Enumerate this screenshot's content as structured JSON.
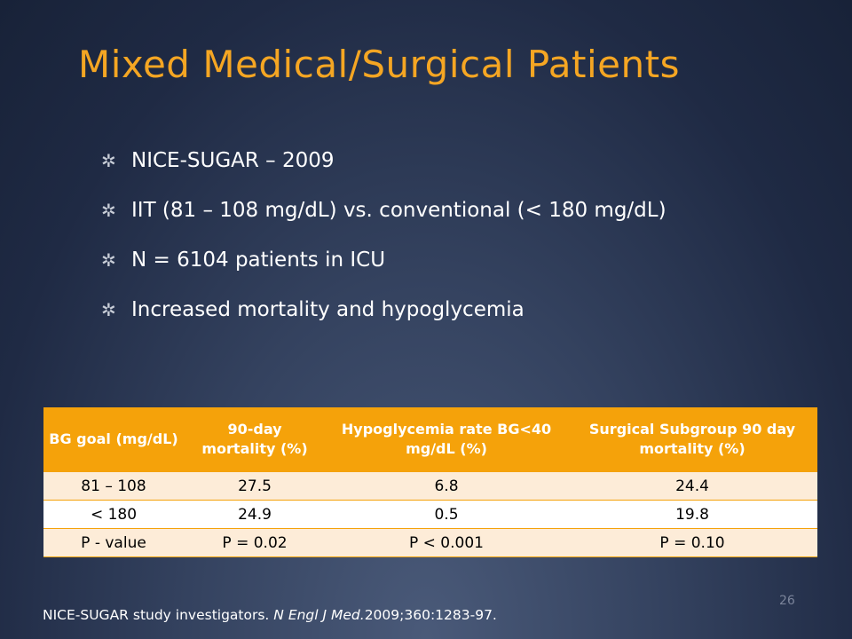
{
  "slide": {
    "title": "Mixed Medical/Surgical Patients",
    "bullets": [
      {
        "icon": "asterisk-bullet-icon",
        "text": "NICE-SUGAR – 2009"
      },
      {
        "icon": "asterisk-bullet-icon",
        "text": "IIT (81 – 108 mg/dL) vs. conventional (< 180 mg/dL)"
      },
      {
        "icon": "asterisk-bullet-icon",
        "text": "N = 6104 patients in ICU"
      },
      {
        "icon": "asterisk-bullet-icon",
        "text": "Increased mortality and  hypoglycemia"
      }
    ],
    "table": {
      "headers": [
        "BG goal (mg/dL)",
        "90-day mortality (%)",
        "Hypoglycemia rate BG<40 mg/dL (%)",
        "Surgical Subgroup 90 day mortality (%)"
      ],
      "rows": [
        [
          "81 – 108",
          "27.5",
          "6.8",
          "24.4"
        ],
        [
          "< 180",
          "24.9",
          "0.5",
          "19.8"
        ],
        [
          "P - value",
          "P = 0.02",
          "P < 0.001",
          "P = 0.10"
        ]
      ]
    },
    "citation_prefix": "NICE-SUGAR study investigators. ",
    "citation_journal": "N Engl J Med.",
    "citation_suffix": "2009;360:1283-97.",
    "slide_number": "26"
  },
  "colors": {
    "title": "#f5a623",
    "table_header": "#f5a20a",
    "row_light": "#fdecd8",
    "row_white": "#ffffff",
    "background": "#243150"
  }
}
